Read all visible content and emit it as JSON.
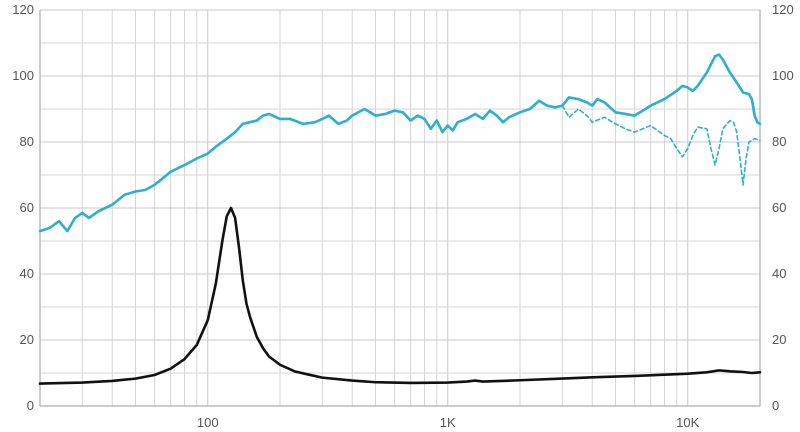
{
  "chart_data": {
    "type": "line",
    "title": "",
    "xlabel": "",
    "ylabel": "",
    "x_scale": "log",
    "xlim": [
      20,
      20000
    ],
    "ylim": [
      0,
      120
    ],
    "grid": true,
    "legend": "none",
    "x_tick_values": [
      100,
      1000,
      10000
    ],
    "x_tick_labels": [
      "100",
      "1K",
      "10K"
    ],
    "y_tick_values": [
      0,
      20,
      40,
      60,
      80,
      100,
      120
    ],
    "y_tick_labels": [
      "0",
      "20",
      "40",
      "60",
      "80",
      "100",
      "120"
    ],
    "series": [
      {
        "color": "#2eaed0",
        "style": "solid",
        "points": [
          [
            20,
            53
          ],
          [
            22,
            54
          ],
          [
            24,
            56
          ],
          [
            26,
            53
          ],
          [
            28,
            57
          ],
          [
            30,
            58.5
          ],
          [
            32,
            57
          ],
          [
            35,
            59
          ],
          [
            40,
            61
          ],
          [
            45,
            64
          ],
          [
            50,
            65
          ],
          [
            55,
            65.5
          ],
          [
            60,
            67
          ],
          [
            65,
            69
          ],
          [
            70,
            71
          ],
          [
            80,
            73
          ],
          [
            90,
            75
          ],
          [
            100,
            76.5
          ],
          [
            110,
            79
          ],
          [
            120,
            81
          ],
          [
            130,
            83
          ],
          [
            140,
            85.5
          ],
          [
            150,
            86
          ],
          [
            160,
            86.5
          ],
          [
            170,
            88
          ],
          [
            180,
            88.5
          ],
          [
            200,
            87
          ],
          [
            220,
            87
          ],
          [
            250,
            85.5
          ],
          [
            280,
            86
          ],
          [
            300,
            87
          ],
          [
            320,
            88
          ],
          [
            350,
            85.5
          ],
          [
            380,
            86.5
          ],
          [
            400,
            88
          ],
          [
            450,
            90
          ],
          [
            500,
            88
          ],
          [
            550,
            88.5
          ],
          [
            600,
            89.5
          ],
          [
            650,
            89
          ],
          [
            700,
            86.5
          ],
          [
            750,
            88
          ],
          [
            800,
            87
          ],
          [
            850,
            84
          ],
          [
            900,
            86.5
          ],
          [
            950,
            83
          ],
          [
            1000,
            85
          ],
          [
            1050,
            83.5
          ],
          [
            1100,
            86
          ],
          [
            1200,
            87
          ],
          [
            1300,
            88.5
          ],
          [
            1400,
            87
          ],
          [
            1500,
            89.5
          ],
          [
            1600,
            88
          ],
          [
            1700,
            86
          ],
          [
            1800,
            87.5
          ],
          [
            2000,
            89
          ],
          [
            2200,
            90
          ],
          [
            2400,
            92.5
          ],
          [
            2600,
            91
          ],
          [
            2800,
            90.5
          ],
          [
            3000,
            91
          ],
          [
            3200,
            93.5
          ],
          [
            3500,
            93
          ],
          [
            3800,
            92
          ],
          [
            4000,
            91
          ],
          [
            4200,
            93
          ],
          [
            4500,
            92
          ],
          [
            5000,
            89
          ],
          [
            5500,
            88.5
          ],
          [
            6000,
            88
          ],
          [
            6500,
            89.5
          ],
          [
            7000,
            91
          ],
          [
            8000,
            93
          ],
          [
            9000,
            95.5
          ],
          [
            9500,
            97
          ],
          [
            10000,
            96.5
          ],
          [
            10500,
            95.5
          ],
          [
            11000,
            97
          ],
          [
            12000,
            101
          ],
          [
            13000,
            106
          ],
          [
            13500,
            106.5
          ],
          [
            14000,
            105
          ],
          [
            15000,
            101
          ],
          [
            16000,
            98
          ],
          [
            17000,
            95
          ],
          [
            18000,
            94.5
          ],
          [
            18500,
            93
          ],
          [
            19000,
            88
          ],
          [
            19500,
            86
          ],
          [
            20000,
            85.5
          ]
        ]
      },
      {
        "color": "#2eaed0",
        "style": "dashed",
        "points": [
          [
            3000,
            91
          ],
          [
            3200,
            87.5
          ],
          [
            3500,
            90
          ],
          [
            3800,
            88
          ],
          [
            4000,
            86
          ],
          [
            4500,
            87.5
          ],
          [
            5000,
            85.5
          ],
          [
            5500,
            84
          ],
          [
            6000,
            83
          ],
          [
            6500,
            84
          ],
          [
            7000,
            85
          ],
          [
            8000,
            82
          ],
          [
            8500,
            81
          ],
          [
            9000,
            78
          ],
          [
            9500,
            75.5
          ],
          [
            10000,
            78
          ],
          [
            10500,
            82
          ],
          [
            11000,
            84.5
          ],
          [
            12000,
            84
          ],
          [
            12500,
            78
          ],
          [
            13000,
            73
          ],
          [
            13500,
            78
          ],
          [
            14000,
            84
          ],
          [
            15000,
            86.5
          ],
          [
            15500,
            86
          ],
          [
            16000,
            83
          ],
          [
            16500,
            75
          ],
          [
            17000,
            67
          ],
          [
            17500,
            75
          ],
          [
            18000,
            80
          ],
          [
            19000,
            81
          ],
          [
            20000,
            80.5
          ]
        ]
      },
      {
        "color": "#111111",
        "style": "solid",
        "points": [
          [
            20,
            6.8
          ],
          [
            30,
            7.1
          ],
          [
            40,
            7.6
          ],
          [
            50,
            8.3
          ],
          [
            60,
            9.4
          ],
          [
            70,
            11.3
          ],
          [
            80,
            14.2
          ],
          [
            90,
            18.5
          ],
          [
            100,
            26
          ],
          [
            108,
            37
          ],
          [
            115,
            50
          ],
          [
            120,
            57.5
          ],
          [
            125,
            60
          ],
          [
            130,
            57
          ],
          [
            135,
            48
          ],
          [
            140,
            38
          ],
          [
            145,
            31
          ],
          [
            150,
            27
          ],
          [
            160,
            21
          ],
          [
            170,
            17.5
          ],
          [
            180,
            15
          ],
          [
            200,
            12.5
          ],
          [
            230,
            10.5
          ],
          [
            260,
            9.6
          ],
          [
            300,
            8.6
          ],
          [
            400,
            7.7
          ],
          [
            500,
            7.2
          ],
          [
            700,
            7
          ],
          [
            1000,
            7.1
          ],
          [
            1200,
            7.4
          ],
          [
            1300,
            7.7
          ],
          [
            1400,
            7.4
          ],
          [
            2000,
            7.8
          ],
          [
            3000,
            8.3
          ],
          [
            4000,
            8.7
          ],
          [
            6000,
            9.1
          ],
          [
            8000,
            9.5
          ],
          [
            10000,
            9.8
          ],
          [
            12000,
            10.2
          ],
          [
            13500,
            10.8
          ],
          [
            15000,
            10.5
          ],
          [
            17000,
            10.3
          ],
          [
            18500,
            10
          ],
          [
            20000,
            10.2
          ]
        ]
      }
    ]
  }
}
